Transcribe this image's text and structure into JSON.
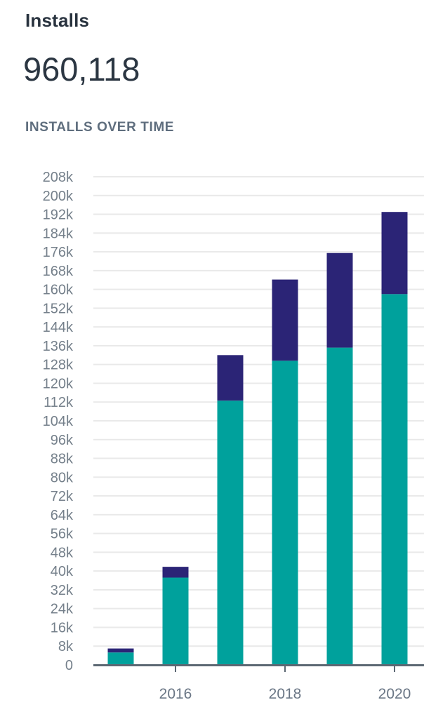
{
  "header": {
    "title": "Installs",
    "total": "960,118",
    "section_heading": "INSTALLS OVER TIME"
  },
  "chart_data": {
    "type": "bar",
    "stacked": true,
    "title": "INSTALLS OVER TIME",
    "categories": [
      "2015",
      "2016",
      "2017",
      "2018",
      "2019",
      "2020"
    ],
    "series": [
      {
        "name": "installs-primary-segment",
        "color": "#00A19C",
        "values": [
          5300,
          37200,
          112600,
          129600,
          135200,
          158000
        ]
      },
      {
        "name": "installs-secondary-segment",
        "color": "#2B2476",
        "values": [
          1700,
          4600,
          19400,
          34600,
          40300,
          35000
        ]
      }
    ],
    "stack_totals": [
      7000,
      41800,
      132000,
      164200,
      175500,
      193000
    ],
    "ylim": [
      0,
      208000
    ],
    "ytick_step": 8000,
    "ytick_labels": [
      "0",
      "8k",
      "16k",
      "24k",
      "32k",
      "40k",
      "48k",
      "56k",
      "64k",
      "72k",
      "80k",
      "88k",
      "96k",
      "104k",
      "112k",
      "120k",
      "128k",
      "136k",
      "144k",
      "152k",
      "160k",
      "168k",
      "176k",
      "184k",
      "192k",
      "200k",
      "208k"
    ],
    "xtick_labels_shown": [
      "2016",
      "2018",
      "2020"
    ],
    "grid": true,
    "legend": "none",
    "colors": {
      "grid": "#E9E9E9",
      "axis": "#5C6873",
      "y_label": "#75808B",
      "x_label": "#6A7685"
    }
  }
}
